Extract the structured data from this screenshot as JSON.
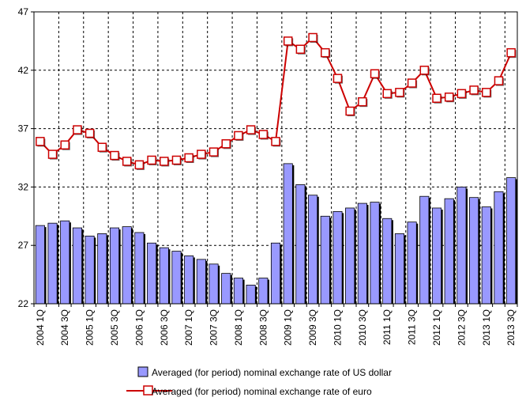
{
  "chart_data": {
    "type": "bar+line",
    "title": "",
    "xlabel": "",
    "ylabel": "",
    "ylim": [
      22,
      47
    ],
    "yticks": [
      22,
      27,
      32,
      37,
      42,
      47
    ],
    "grid": true,
    "legend_position": "bottom",
    "categories": [
      "2004 1Q",
      "2004 2Q",
      "2004 3Q",
      "2004 4Q",
      "2005 1Q",
      "2005 2Q",
      "2005 3Q",
      "2005 4Q",
      "2006 1Q",
      "2006 2Q",
      "2006 3Q",
      "2006 4Q",
      "2007 1Q",
      "2007 2Q",
      "2007 3Q",
      "2007 4Q",
      "2008 1Q",
      "2008 2Q",
      "2008 3Q",
      "2008 4Q",
      "2009 1Q",
      "2009 2Q",
      "2009 3Q",
      "2009 4Q",
      "2010 1Q",
      "2010 2Q",
      "2010 3Q",
      "2010 4Q",
      "2011 1Q",
      "2011 2Q",
      "2011 3Q",
      "2011 4Q",
      "2012 1Q",
      "2012 2Q",
      "2012 3Q",
      "2012 4Q",
      "2013 1Q",
      "2013 2Q",
      "2013 3Q"
    ],
    "tick_labels": [
      "2004 1Q",
      "2004 3Q",
      "2005 1Q",
      "2005 3Q",
      "2006 1Q",
      "2006 3Q",
      "2007 1Q",
      "2007 3Q",
      "2008 1Q",
      "2008 3Q",
      "2009 1Q",
      "2009 3Q",
      "2010 1Q",
      "2010 3Q",
      "2011 1Q",
      "2011 3Q",
      "2012 1Q",
      "2012 3Q",
      "2013 1Q",
      "2013 3Q"
    ],
    "series": [
      {
        "name": "Averaged (for period) nominal exchange rate of US dollar",
        "type": "bar",
        "color": "#9999ff",
        "values": [
          28.7,
          28.9,
          29.1,
          28.5,
          27.8,
          28.0,
          28.5,
          28.6,
          28.1,
          27.2,
          26.8,
          26.5,
          26.1,
          25.8,
          25.4,
          24.6,
          24.2,
          23.6,
          24.2,
          27.2,
          34.0,
          32.2,
          31.3,
          29.5,
          29.9,
          30.2,
          30.6,
          30.7,
          29.3,
          28.0,
          29.0,
          31.2,
          30.2,
          31.0,
          32.0,
          31.1,
          30.3,
          31.6,
          32.8
        ]
      },
      {
        "name": "Averaged (for period) nominal exchange rate of euro",
        "type": "line",
        "color": "#cc0000",
        "values": [
          35.9,
          34.8,
          35.6,
          36.9,
          36.6,
          35.4,
          34.7,
          34.2,
          33.9,
          34.3,
          34.2,
          34.3,
          34.5,
          34.8,
          35.0,
          35.7,
          36.4,
          36.9,
          36.5,
          35.9,
          44.5,
          43.8,
          44.8,
          43.5,
          41.3,
          38.5,
          39.3,
          41.7,
          40.0,
          40.1,
          40.9,
          42.0,
          39.6,
          39.7,
          40.0,
          40.3,
          40.1,
          41.1,
          43.5
        ]
      }
    ]
  }
}
